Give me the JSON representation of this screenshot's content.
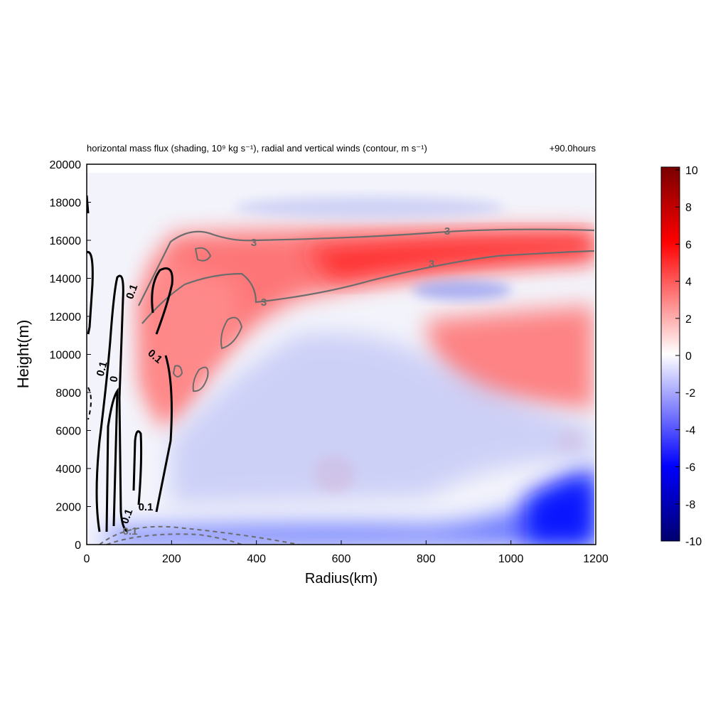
{
  "chart_data": {
    "type": "heatmap",
    "title": "horizontal mass flux (shading, 10⁹ kg s⁻¹), radial and vertical winds (contour, m s⁻¹)",
    "time_label": "+90.0hours",
    "xlabel": "Radius(km)",
    "ylabel": "Height(m)",
    "xlim": [
      0,
      1200
    ],
    "ylim": [
      0,
      20000
    ],
    "x_ticks": [
      "0",
      "200",
      "400",
      "600",
      "800",
      "1000",
      "1200"
    ],
    "y_ticks": [
      "0",
      "2000",
      "4000",
      "6000",
      "8000",
      "10000",
      "12000",
      "14000",
      "16000",
      "18000",
      "20000"
    ],
    "colorbar": {
      "range": [
        -10,
        10
      ],
      "ticks": [
        "10",
        "8",
        "6",
        "4",
        "2",
        "0",
        "-2",
        "-4",
        "-6",
        "-8",
        "-10"
      ],
      "colors": [
        "#00006e",
        "#0000ff",
        "#ffffff",
        "#ff0000",
        "#7a0000"
      ]
    },
    "contour_labels": [
      "3",
      "3",
      "3",
      "3",
      "0.1",
      "0.1",
      "0.1",
      "0",
      "0.1",
      "0.1",
      "0.1"
    ],
    "shading_regions": [
      {
        "name": "upper outflow",
        "r_range": [
          350,
          1200
        ],
        "z_range": [
          13500,
          16500
        ],
        "value": 6
      },
      {
        "name": "mid outflow",
        "r_range": [
          850,
          1200
        ],
        "z_range": [
          8000,
          11500
        ],
        "value": 3.5
      },
      {
        "name": "eyewall slope",
        "r_range": [
          150,
          450
        ],
        "z_range": [
          6000,
          15000
        ],
        "value": 2.5
      },
      {
        "name": "boundary layer inflow",
        "r_range": [
          850,
          1200
        ],
        "z_range": [
          0,
          4000
        ],
        "value": -8
      },
      {
        "name": "low level inflow",
        "r_range": [
          200,
          1200
        ],
        "z_range": [
          0,
          1200
        ],
        "value": -4
      },
      {
        "name": "mid inflow",
        "r_range": [
          300,
          1000
        ],
        "z_range": [
          4000,
          8000
        ],
        "value": -1.5
      },
      {
        "name": "upper inflow",
        "r_range": [
          450,
          950
        ],
        "z_range": [
          12000,
          13500
        ],
        "value": -2
      },
      {
        "name": "top inflow",
        "r_range": [
          300,
          900
        ],
        "z_range": [
          17500,
          18500
        ],
        "value": -1.5
      }
    ]
  }
}
